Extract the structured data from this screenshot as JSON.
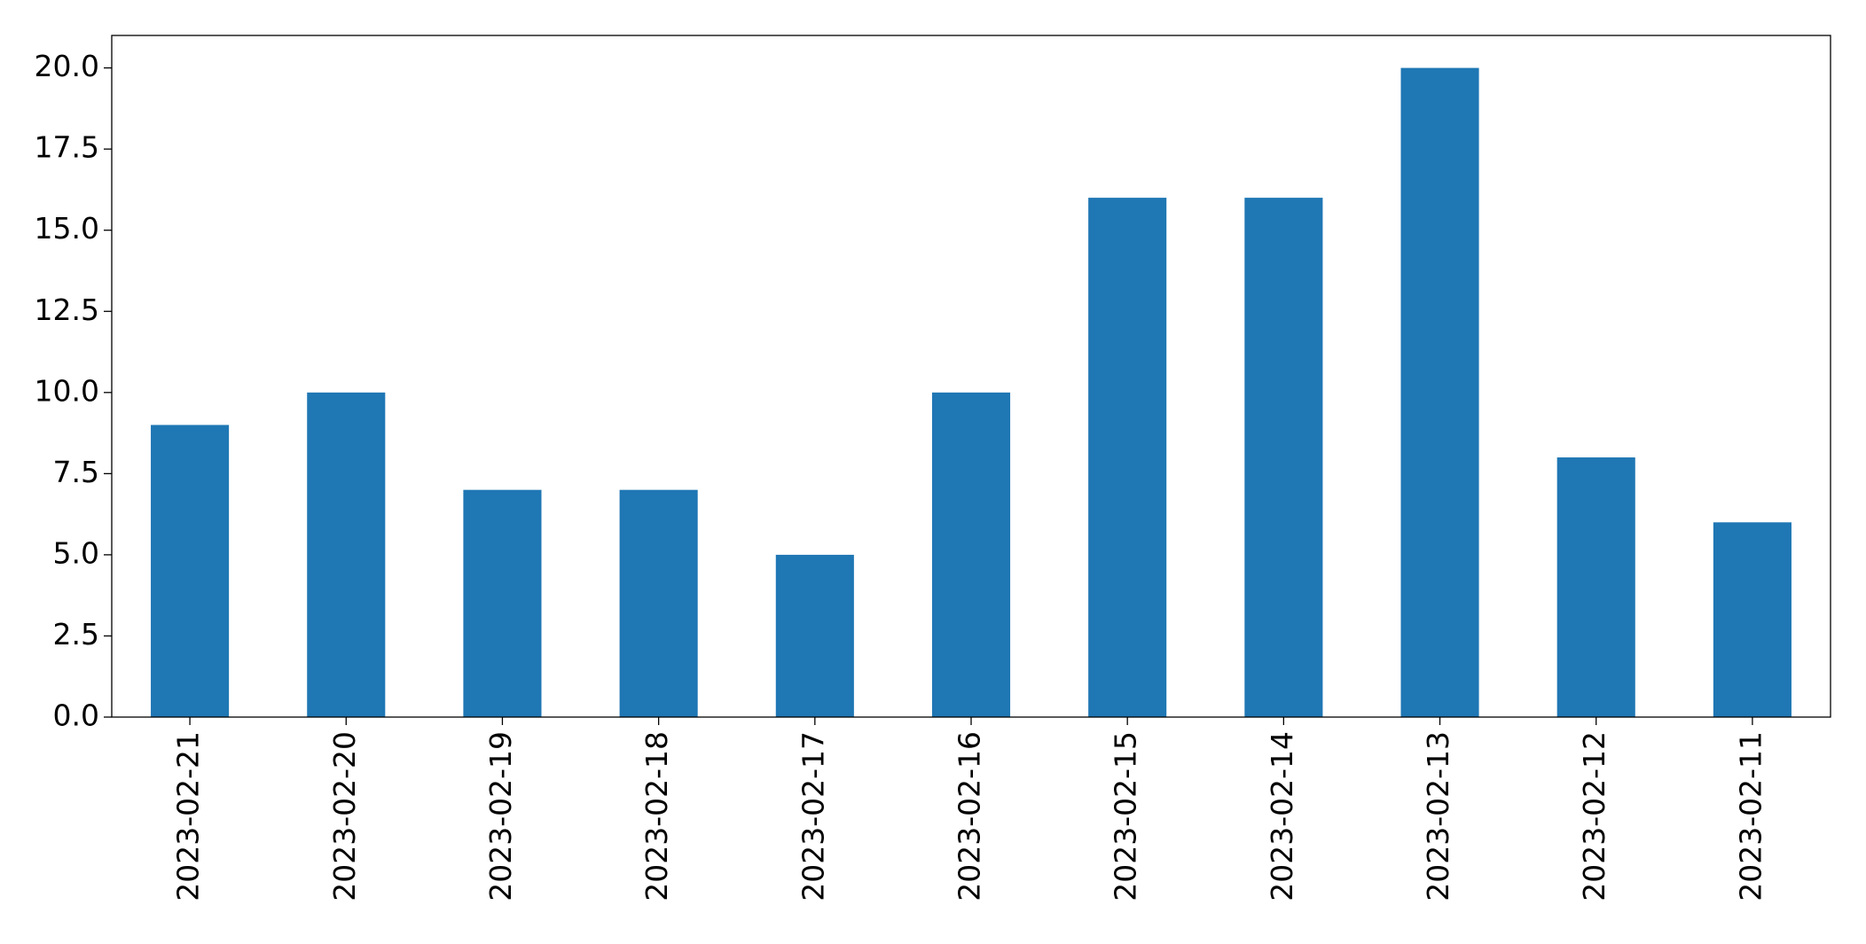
{
  "chart_data": {
    "type": "bar",
    "categories": [
      "2023-02-21",
      "2023-02-20",
      "2023-02-19",
      "2023-02-18",
      "2023-02-17",
      "2023-02-16",
      "2023-02-15",
      "2023-02-14",
      "2023-02-13",
      "2023-02-12",
      "2023-02-11"
    ],
    "values": [
      9,
      10,
      7,
      7,
      5,
      10,
      16,
      16,
      20,
      8,
      6
    ],
    "color": "#1f77b4",
    "ylim": [
      0,
      21
    ],
    "yticks": [
      {
        "value": 0,
        "label": "0.0"
      },
      {
        "value": 2.5,
        "label": "2.5"
      },
      {
        "value": 5,
        "label": "5.0"
      },
      {
        "value": 7.5,
        "label": "7.5"
      },
      {
        "value": 10,
        "label": "10.0"
      },
      {
        "value": 12.5,
        "label": "12.5"
      },
      {
        "value": 15,
        "label": "15.0"
      },
      {
        "value": 17.5,
        "label": "17.5"
      },
      {
        "value": 20,
        "label": "20.0"
      }
    ],
    "grid": false
  }
}
